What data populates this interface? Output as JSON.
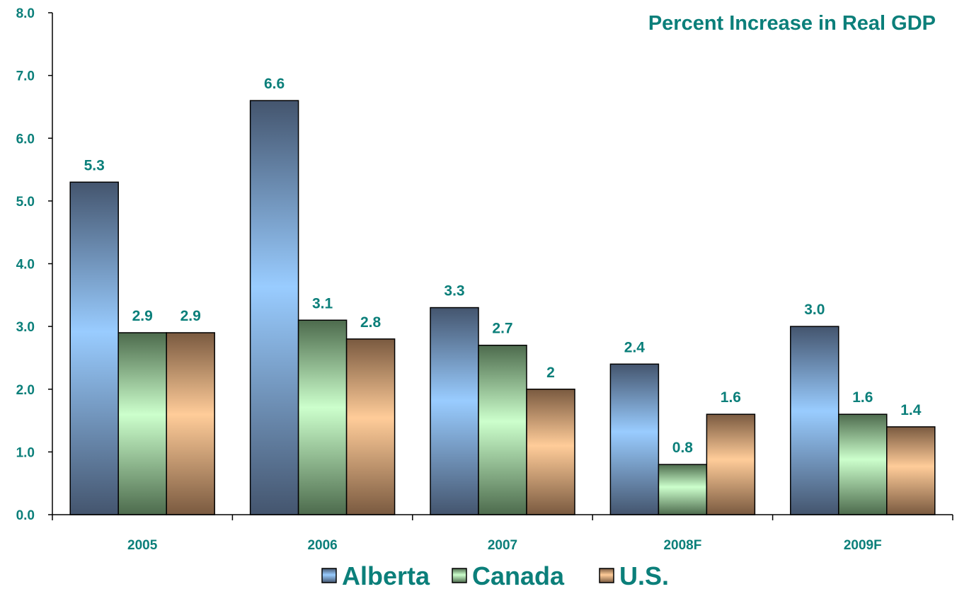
{
  "chart_data": {
    "type": "bar",
    "title": "Percent Increase in Real GDP",
    "xlabel": "",
    "ylabel": "",
    "categories": [
      "2005",
      "2006",
      "2007",
      "2008F",
      "2009F"
    ],
    "ylim": [
      0,
      8
    ],
    "yticks": [
      "0.0",
      "1.0",
      "2.0",
      "3.0",
      "4.0",
      "5.0",
      "6.0",
      "7.0",
      "8.0"
    ],
    "grid": false,
    "legend_position": "bottom",
    "series": [
      {
        "name": "Alberta",
        "values": [
          5.3,
          6.6,
          3.3,
          2.4,
          3.0
        ],
        "labels": [
          "5.3",
          "6.6",
          "3.3",
          "2.4",
          "3.0"
        ],
        "color": "#99ccff"
      },
      {
        "name": "Canada",
        "values": [
          2.9,
          3.1,
          2.7,
          0.8,
          1.6
        ],
        "labels": [
          "2.9",
          "3.1",
          "2.7",
          "0.8",
          "1.6"
        ],
        "color": "#ccffcc"
      },
      {
        "name": "U.S.",
        "values": [
          2.9,
          2.8,
          2.0,
          1.6,
          1.4
        ],
        "labels": [
          "2.9",
          "2.8",
          "2",
          "1.6",
          "1.4"
        ],
        "color": "#ffcc99"
      }
    ]
  },
  "colors": {
    "text": "#0b7f7a",
    "alberta_edge": "#44556e",
    "canada_edge": "#4d6b4d",
    "us_edge": "#7a5a40"
  }
}
